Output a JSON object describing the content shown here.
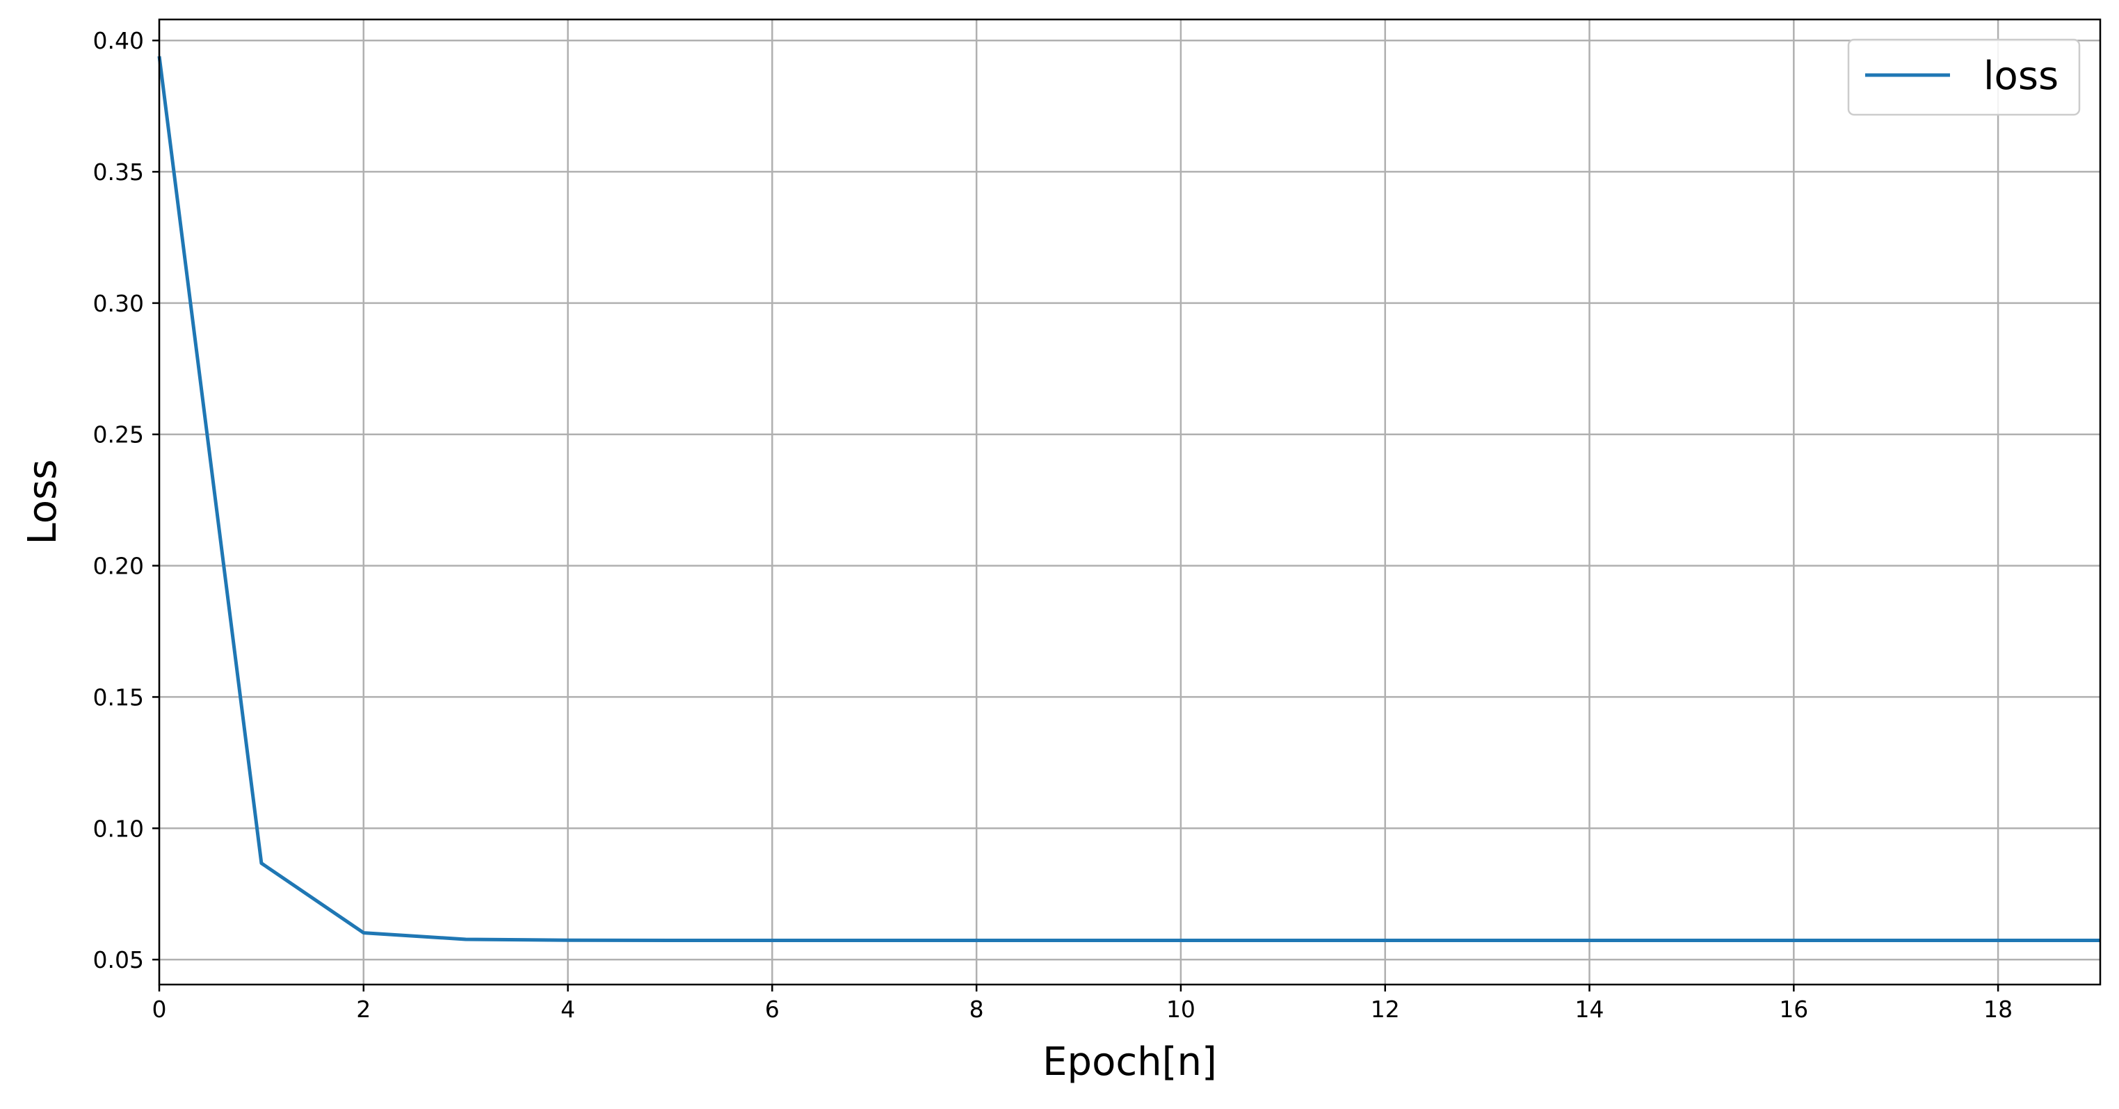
{
  "chart_data": {
    "type": "line",
    "title": "",
    "xlabel": "Epoch[n]",
    "ylabel": "Loss",
    "xlim": [
      0,
      19
    ],
    "ylim": [
      0.0405,
      0.408
    ],
    "xticks": [
      0,
      2,
      4,
      6,
      8,
      10,
      12,
      14,
      16,
      18
    ],
    "yticks": [
      0.05,
      0.1,
      0.15,
      0.2,
      0.25,
      0.3,
      0.35,
      0.4
    ],
    "xtick_labels": [
      "0",
      "2",
      "4",
      "6",
      "8",
      "10",
      "12",
      "14",
      "16",
      "18"
    ],
    "ytick_labels": [
      "0.05",
      "0.10",
      "0.15",
      "0.20",
      "0.25",
      "0.30",
      "0.35",
      "0.40"
    ],
    "grid": true,
    "legend_position": "top-right",
    "series": [
      {
        "name": "loss",
        "color": "#1f77b4",
        "x": [
          0,
          1,
          2,
          3,
          4,
          5,
          6,
          7,
          8,
          9,
          10,
          11,
          12,
          13,
          14,
          15,
          16,
          17,
          18,
          19
        ],
        "values": [
          0.394,
          0.0867,
          0.0602,
          0.0577,
          0.0574,
          0.0573,
          0.0573,
          0.0573,
          0.0573,
          0.0573,
          0.0573,
          0.0573,
          0.0573,
          0.0573,
          0.0573,
          0.0573,
          0.0573,
          0.0573,
          0.0573,
          0.0573
        ]
      }
    ],
    "colors": {
      "grid": "#b0b0b0",
      "axes": "#000000",
      "legend_border": "#cccccc"
    }
  }
}
